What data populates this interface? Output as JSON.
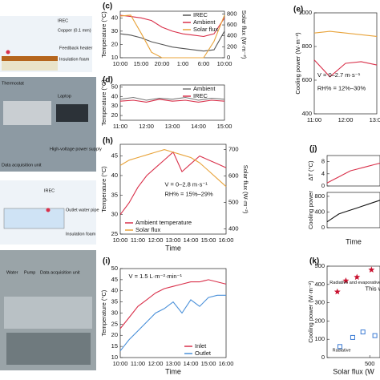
{
  "figure_labels": [
    "IREC",
    "Copper (0.1 mm)",
    "Feedback heater",
    "Insulation foam",
    "Thermostat",
    "Laptop",
    "High-voltage power supply",
    "Data acquisition unit",
    "IREC",
    "Outlet water pipe",
    "Insulation foam",
    "Water",
    "Pump",
    "Data acquisition unit"
  ],
  "chart_data": [
    {
      "type": "line",
      "panel": "(c)",
      "y_label": "Temperature (°C)",
      "y2_label": "Solar flux (W·m⁻²)",
      "categories": [
        "10:00",
        null,
        "15:00",
        null,
        "20:00",
        null,
        "1:00",
        null,
        "6:00",
        null,
        "10:00"
      ],
      "ylim": [
        10,
        45
      ],
      "yticks": [
        10,
        20,
        30,
        40
      ],
      "y2lim": [
        0,
        850
      ],
      "y2ticks": [
        0,
        200,
        400,
        600,
        800
      ],
      "legend": "upper right",
      "series": [
        {
          "name": "IREC",
          "color": "#555555",
          "values": [
            28,
            27,
            25,
            22,
            20,
            18,
            17,
            16,
            15,
            16,
            30
          ]
        },
        {
          "name": "Ambient",
          "color": "#d9304a",
          "values": [
            42,
            41,
            40,
            38,
            33,
            30,
            28,
            27,
            26,
            28,
            40
          ]
        },
        {
          "name": "Solar flux",
          "color": "#e8a33a",
          "axis": "y2",
          "values": [
            760,
            780,
            450,
            100,
            0,
            0,
            0,
            0,
            0,
            300,
            780
          ]
        }
      ]
    },
    {
      "type": "line",
      "panel": "(d)",
      "y_label": "Temperature (°C)",
      "categories": [
        "11:00",
        null,
        "12:00",
        null,
        "13:00",
        null,
        "14:00",
        null,
        "15:00"
      ],
      "ylim": [
        15,
        52
      ],
      "yticks": [
        20,
        30,
        40,
        50
      ],
      "legend": "upper right",
      "series": [
        {
          "name": "Ambient",
          "color": "#777777",
          "values": [
            37,
            39,
            36,
            38,
            37,
            39,
            36,
            38,
            37
          ]
        },
        {
          "name": "IREC",
          "color": "#d9304a",
          "values": [
            35,
            36,
            34,
            37,
            35,
            36,
            34,
            36,
            35
          ]
        }
      ]
    },
    {
      "type": "line",
      "panel": "(e)",
      "y_label": "Cooling power (W·m⁻²)",
      "categories": [
        "11:00",
        null,
        "12:00",
        null,
        "13:00"
      ],
      "ylim": [
        400,
        1000
      ],
      "yticks": [
        400,
        600,
        800,
        1000
      ],
      "annotations": [
        "V = 0–2.7 m·s⁻¹",
        "RH% = 12%–30%"
      ],
      "series": [
        {
          "color": "#e8a33a",
          "values": [
            880,
            890,
            880,
            870,
            860
          ]
        },
        {
          "color": "#d9304a",
          "values": [
            720,
            620,
            700,
            710,
            690
          ]
        }
      ]
    },
    {
      "type": "line",
      "panel": "(h)",
      "y_label": "Temperature (°C)",
      "y2_label": "Solar flux (W·m⁻²)",
      "x_label": "Time",
      "categories": [
        "10:00",
        null,
        "11:00",
        null,
        "12:00",
        null,
        "13:00",
        null,
        "14:00",
        null,
        "15:00",
        null,
        "16:00"
      ],
      "ylim": [
        25,
        48
      ],
      "yticks": [
        25,
        30,
        35,
        40,
        45
      ],
      "y2lim": [
        380,
        720
      ],
      "y2ticks": [
        400,
        500,
        600,
        700
      ],
      "legend": "lower left",
      "annotations": [
        "V = 0–2.8 m·s⁻¹",
        "RH% = 15%–29%"
      ],
      "series": [
        {
          "name": "Ambient temperature",
          "color": "#d9304a",
          "values": [
            30,
            33,
            37,
            40,
            42,
            44,
            46,
            41,
            43,
            45,
            44,
            43,
            42
          ]
        },
        {
          "name": "Solar flux",
          "color": "#e8a33a",
          "axis": "y2",
          "values": [
            640,
            660,
            670,
            680,
            690,
            700,
            690,
            680,
            670,
            650,
            620,
            590,
            560
          ]
        }
      ]
    },
    {
      "type": "line",
      "panel": "(i)",
      "y_label": "Temperature (°C)",
      "x_label": "Time",
      "categories": [
        "10:00",
        null,
        "11:00",
        null,
        "12:00",
        null,
        "13:00",
        null,
        "14:00",
        null,
        "15:00",
        null,
        "16:00"
      ],
      "ylim": [
        10,
        50
      ],
      "yticks": [
        10,
        15,
        20,
        25,
        30,
        35,
        40,
        45,
        50
      ],
      "legend": "lower right",
      "annotations": [
        "V = 1.5 L·m⁻²·min⁻¹"
      ],
      "series": [
        {
          "name": "Inlet",
          "color": "#d9304a",
          "values": [
            23,
            28,
            33,
            36,
            39,
            41,
            42,
            43,
            44,
            44,
            45,
            44,
            43
          ]
        },
        {
          "name": "Outlet",
          "color": "#4a90d9",
          "values": [
            13,
            18,
            22,
            26,
            30,
            32,
            35,
            30,
            36,
            33,
            37,
            38,
            38
          ]
        }
      ]
    },
    {
      "type": "line",
      "panel": "(j)",
      "y_label": "ΔT (°C)",
      "categories": [
        null,
        null,
        null,
        null,
        null,
        null,
        null,
        null,
        null,
        null
      ],
      "ylim": [
        0,
        10
      ],
      "yticks": [
        0,
        4,
        8
      ],
      "series": [
        {
          "color": "#d9304a",
          "values": [
            1,
            2,
            3,
            4,
            5,
            5.5,
            6,
            6.5,
            7,
            7.5
          ]
        }
      ]
    },
    {
      "type": "line",
      "y_label": "Cooling power",
      "x_label": "Time",
      "categories": [
        null,
        null,
        null,
        null,
        null,
        null,
        null,
        null,
        null,
        null
      ],
      "ylim": [
        0,
        900
      ],
      "yticks": [
        0,
        400,
        800
      ],
      "series": [
        {
          "color": "#111111",
          "values": [
            150,
            250,
            350,
            400,
            450,
            500,
            550,
            600,
            650,
            700
          ]
        }
      ]
    },
    {
      "type": "scatter",
      "panel": "(k)",
      "y_label": "Cooling power (W·m⁻²)",
      "x_label": "Solar flux (W",
      "xlim": [
        0,
        620
      ],
      "xticks": [
        500
      ],
      "ylim": [
        0,
        500
      ],
      "yticks": [
        0,
        100,
        200,
        300,
        400,
        500
      ],
      "annotations": [
        "This wo"
      ],
      "series": [
        {
          "name": "Radiative and evaporative",
          "color": "#c8102e",
          "marker": "star",
          "x": [
            120,
            220,
            350,
            520
          ],
          "y": [
            360,
            420,
            440,
            480
          ]
        },
        {
          "name": "Radiative",
          "color": "#3b7bd4",
          "marker": "square",
          "x": [
            150,
            300,
            420,
            560
          ],
          "y": [
            60,
            110,
            140,
            120
          ]
        }
      ]
    }
  ]
}
